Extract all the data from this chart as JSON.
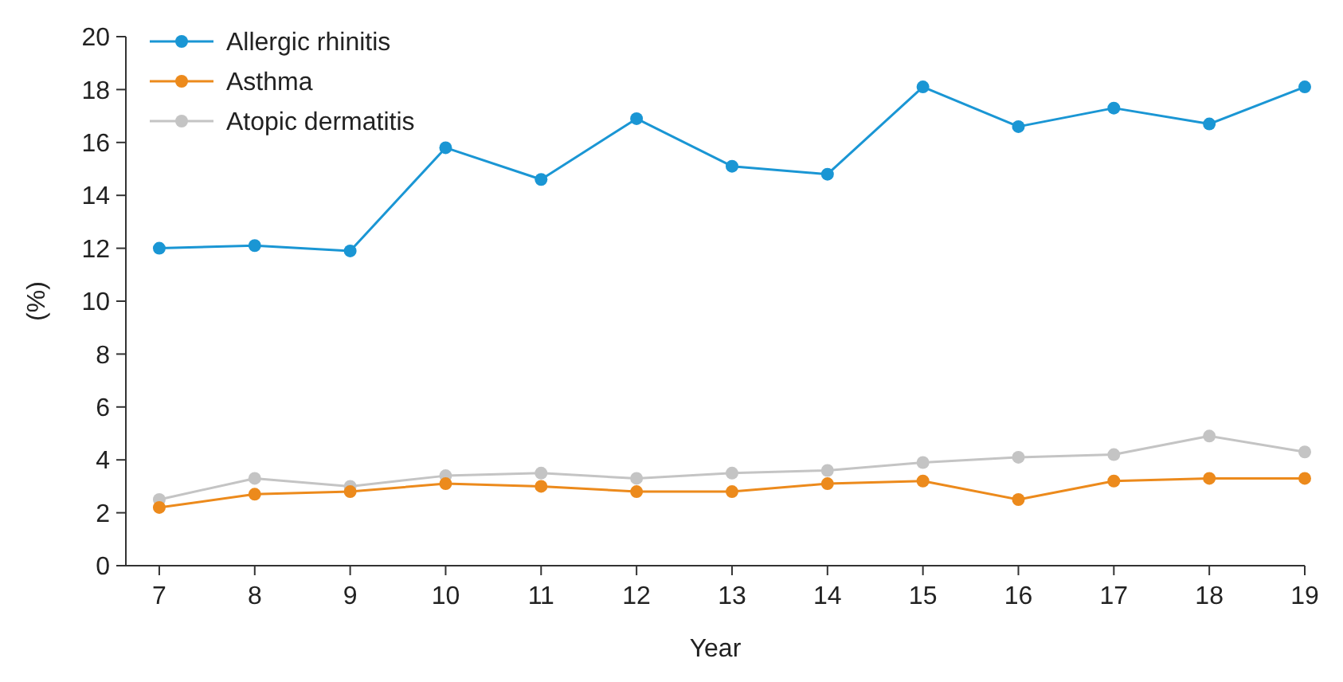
{
  "chart_data": {
    "type": "line",
    "xlabel": "Year",
    "ylabel": "(%)",
    "x": [
      7,
      8,
      9,
      10,
      11,
      12,
      13,
      14,
      15,
      16,
      17,
      18,
      19
    ],
    "xlim": [
      6.65,
      19
    ],
    "xticks": [
      7,
      8,
      9,
      10,
      11,
      12,
      13,
      14,
      15,
      16,
      17,
      18,
      19
    ],
    "ylim": [
      0,
      20
    ],
    "yticks": [
      0,
      2,
      4,
      6,
      8,
      10,
      12,
      14,
      16,
      18,
      20
    ],
    "grid": false,
    "legend": "top left",
    "marker": "circle",
    "line_style": "solid",
    "series": [
      {
        "name": "Allergic rhinitis",
        "color": "#1a96d4",
        "values": [
          12.0,
          12.1,
          11.9,
          15.8,
          14.6,
          16.9,
          15.1,
          14.8,
          18.1,
          16.6,
          17.3,
          16.7,
          18.1
        ]
      },
      {
        "name": "Asthma",
        "color": "#ec8a1c",
        "values": [
          2.2,
          2.7,
          2.8,
          3.1,
          3.0,
          2.8,
          2.8,
          3.1,
          3.2,
          2.5,
          3.2,
          3.3,
          3.3
        ]
      },
      {
        "name": "Atopic dermatitis",
        "color": "#c4c4c4",
        "values": [
          2.5,
          3.3,
          3.0,
          3.4,
          3.5,
          3.3,
          3.5,
          3.6,
          3.9,
          4.1,
          4.2,
          4.9,
          4.3
        ]
      }
    ]
  }
}
